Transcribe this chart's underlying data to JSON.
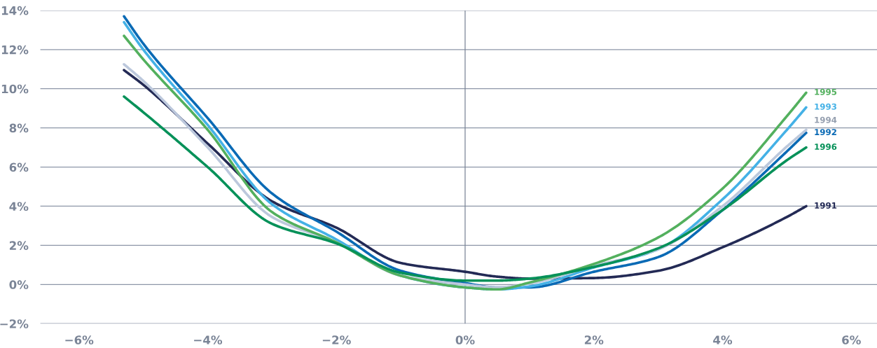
{
  "chart_data": {
    "type": "line",
    "x": [
      -5.3,
      -5,
      -4,
      -3,
      -2,
      -1,
      0,
      0.5,
      1,
      2,
      3,
      4,
      5,
      5.3
    ],
    "series": [
      {
        "name": "1991",
        "color": "#232a55",
        "values": [
          10.95,
          10.2,
          7.2,
          4.25,
          2.9,
          1.1,
          0.65,
          0.4,
          0.3,
          0.33,
          0.7,
          1.9,
          3.45,
          4.0
        ]
      },
      {
        "name": "1992",
        "color": "#0a6ab5",
        "values": [
          13.7,
          12.3,
          8.5,
          4.65,
          2.7,
          0.7,
          0.07,
          -0.15,
          -0.15,
          0.65,
          1.4,
          3.8,
          6.8,
          7.75
        ]
      },
      {
        "name": "1993",
        "color": "#44b1e6",
        "values": [
          13.4,
          12.0,
          8.15,
          4.1,
          2.3,
          0.45,
          -0.15,
          -0.25,
          -0.1,
          0.87,
          1.8,
          4.35,
          7.9,
          9.05
        ]
      },
      {
        "name": "1994",
        "color": "#bcc8dc",
        "values": [
          11.25,
          10.4,
          7.0,
          3.45,
          2.15,
          0.45,
          0.0,
          -0.15,
          0.05,
          0.95,
          1.8,
          4.0,
          7.05,
          7.9
        ]
      },
      {
        "name": "1995",
        "color": "#53b05e",
        "values": [
          12.7,
          11.5,
          7.9,
          3.7,
          2.15,
          0.45,
          -0.15,
          -0.25,
          0.1,
          1.05,
          2.4,
          4.9,
          8.6,
          9.8
        ]
      },
      {
        "name": "1996",
        "color": "#069159",
        "values": [
          9.6,
          8.8,
          6.0,
          3.1,
          2.1,
          0.6,
          0.2,
          0.2,
          0.3,
          0.9,
          1.85,
          3.8,
          6.35,
          7.0
        ]
      }
    ],
    "xlim": [
      -6.6,
      6.4
    ],
    "xticks": [
      {
        "value": -6,
        "label": "−6%"
      },
      {
        "value": -4,
        "label": "−4%"
      },
      {
        "value": -2,
        "label": "−2%"
      },
      {
        "value": 0,
        "label": "0%"
      },
      {
        "value": 2,
        "label": "2%"
      },
      {
        "value": 4,
        "label": "4%"
      },
      {
        "value": 6,
        "label": "6%"
      }
    ],
    "ylim": [
      -2,
      14
    ],
    "yticks": [
      {
        "value": -2,
        "label": "−2%"
      },
      {
        "value": 0,
        "label": "0%"
      },
      {
        "value": 2,
        "label": "2%"
      },
      {
        "value": 4,
        "label": "4%"
      },
      {
        "value": 6,
        "label": "6%"
      },
      {
        "value": 8,
        "label": "8%"
      },
      {
        "value": 10,
        "label": "10%"
      },
      {
        "value": 12,
        "label": "12%"
      },
      {
        "value": 14,
        "label": "14%"
      }
    ],
    "ref_lines": [
      {
        "axis": "x",
        "value": 0,
        "color": "#7a8496"
      }
    ],
    "grid": "y",
    "legend": false,
    "marker": "none",
    "line_style": "solid"
  }
}
